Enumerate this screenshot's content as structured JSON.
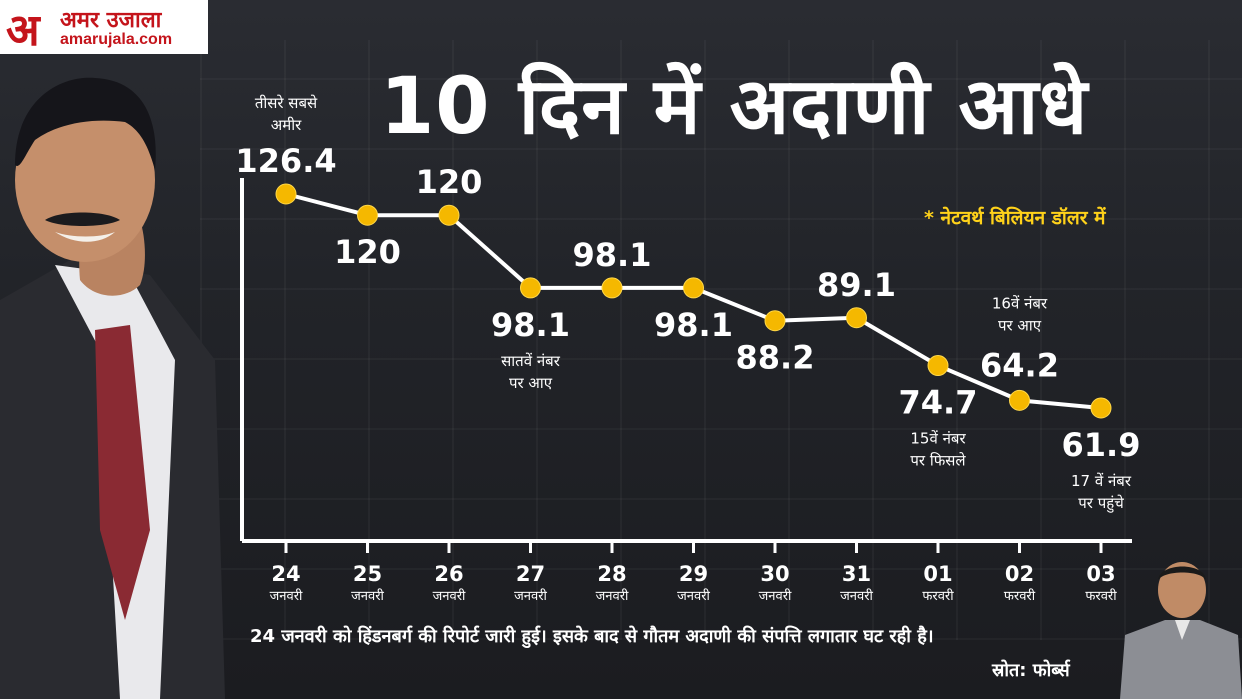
{
  "brand": {
    "logo_letter": "अ",
    "logo_name": "अमर उजाला",
    "logo_url": "amarujala.com",
    "color": "#c4141b"
  },
  "title": "10 दिन में अदाणी आधे",
  "note": "* नेटवर्थ  बिलियन डॉलर में",
  "footer": "24 जनवरी को हिंडनबर्ग की रिपोर्ट जारी हुई। इसके बाद से गौतम अदाणी की संपत्ति लगातार घट रही है।",
  "source": "स्रोत: फोर्ब्स",
  "colors": {
    "accent": "#f5b800",
    "line": "#ffffff",
    "note": "#ffd21a",
    "background": "#222429"
  },
  "chart_data": {
    "type": "line",
    "title": "10 दिन में अदाणी आधे",
    "ylabel": "",
    "xlabel": "",
    "ylim": [
      55,
      130
    ],
    "grid": false,
    "categories": [
      [
        "24",
        "जनवरी"
      ],
      [
        "25",
        "जनवरी"
      ],
      [
        "26",
        "जनवरी"
      ],
      [
        "27",
        "जनवरी"
      ],
      [
        "28",
        "जनवरी"
      ],
      [
        "29",
        "जनवरी"
      ],
      [
        "30",
        "जनवरी"
      ],
      [
        "31",
        "जनवरी"
      ],
      [
        "01",
        "फरवरी"
      ],
      [
        "02",
        "फरवरी"
      ],
      [
        "03",
        "फरवरी"
      ]
    ],
    "series": [
      {
        "values": [
          126.4,
          120,
          120,
          98.1,
          98.1,
          98.1,
          88.2,
          89.1,
          74.7,
          64.2,
          61.9
        ]
      }
    ],
    "value_labels": [
      "126.4",
      "120",
      "120",
      "98.1",
      "98.1",
      "98.1",
      "88.2",
      "89.1",
      "74.7",
      "64.2",
      "61.9"
    ],
    "annotations": [
      {
        "index": 0,
        "lines": [
          "तीसरे सबसे",
          "अमीर"
        ]
      },
      {
        "index": 3,
        "lines": [
          "सातवें नंबर",
          "पर आए"
        ]
      },
      {
        "index": 8,
        "lines": [
          "15वें नंबर",
          "पर फिसले"
        ]
      },
      {
        "index": 9,
        "lines": [
          "16वें नंबर",
          "पर आए"
        ]
      },
      {
        "index": 10,
        "lines": [
          "17 वें नंबर",
          "पर पहुंचे"
        ]
      }
    ]
  }
}
